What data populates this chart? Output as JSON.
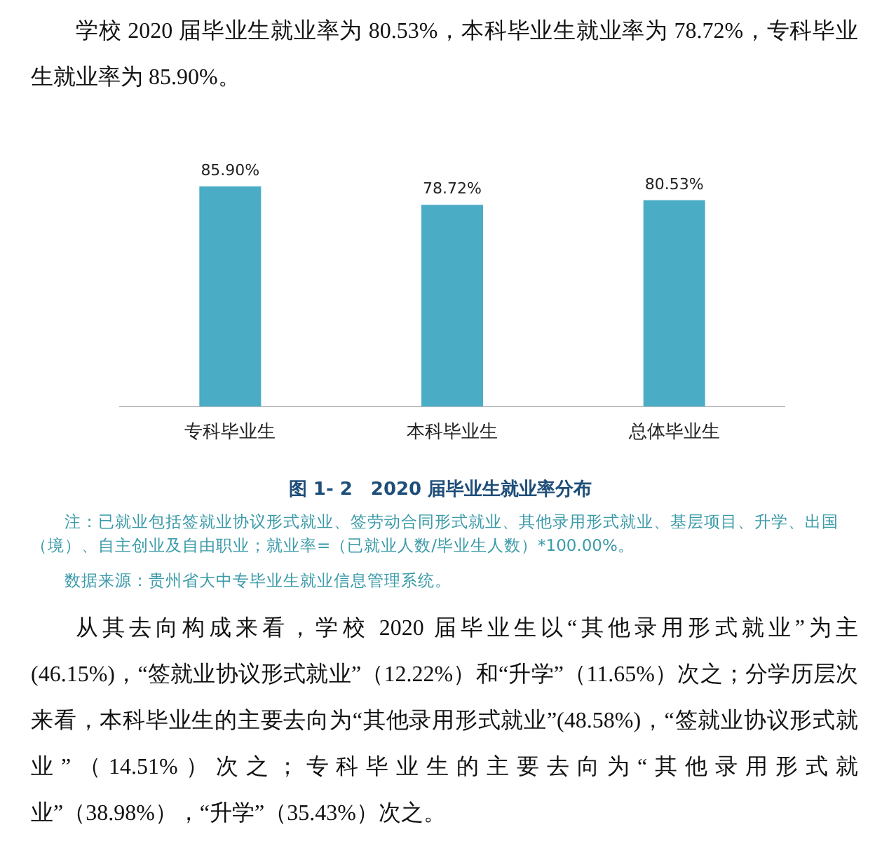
{
  "chart_data": {
    "type": "bar",
    "title": "图 1- 2　2020 届毕业生就业率分布",
    "categories": [
      "专科毕业生",
      "本科毕业生",
      "总体毕业生"
    ],
    "values": [
      85.9,
      78.72,
      80.53
    ],
    "color": "#4bacc6",
    "data_labels": true,
    "value_labels": [
      "85.90%",
      "78.72%",
      "80.53%"
    ],
    "annotations": [
      "学校 2020 届毕业生就业率为 80.53%，本科毕业生就业率为 78.72%，专科毕业生就业率为 85.90%。",
      "注：已就业包括签就业协议形式就业、签劳动合同形式就业、其他录用形式就业、基层项目、升学、出国（境）、自主创业及自由职业；就业率=（已就业人数/毕业生人数）*100.00%。",
      "数据来源：贵州省大中专毕业生就业信息管理系统。",
      "从其去向构成来看，学校 2020 届毕业生以“其他录用形式就业”为主(46.15%)，“签就业协议形式就业”（12.22%）和“升学”（11.65%）次之；分学历层次来看，本科毕业生的主要去向为“其他录用形式就业”(48.58%)，“签就业协议形式就业”（14.51%）次之；专科毕业生的主要去向为“其他录用形式就业”（38.98%），“升学”（35.43%）次之。"
    ]
  }
}
